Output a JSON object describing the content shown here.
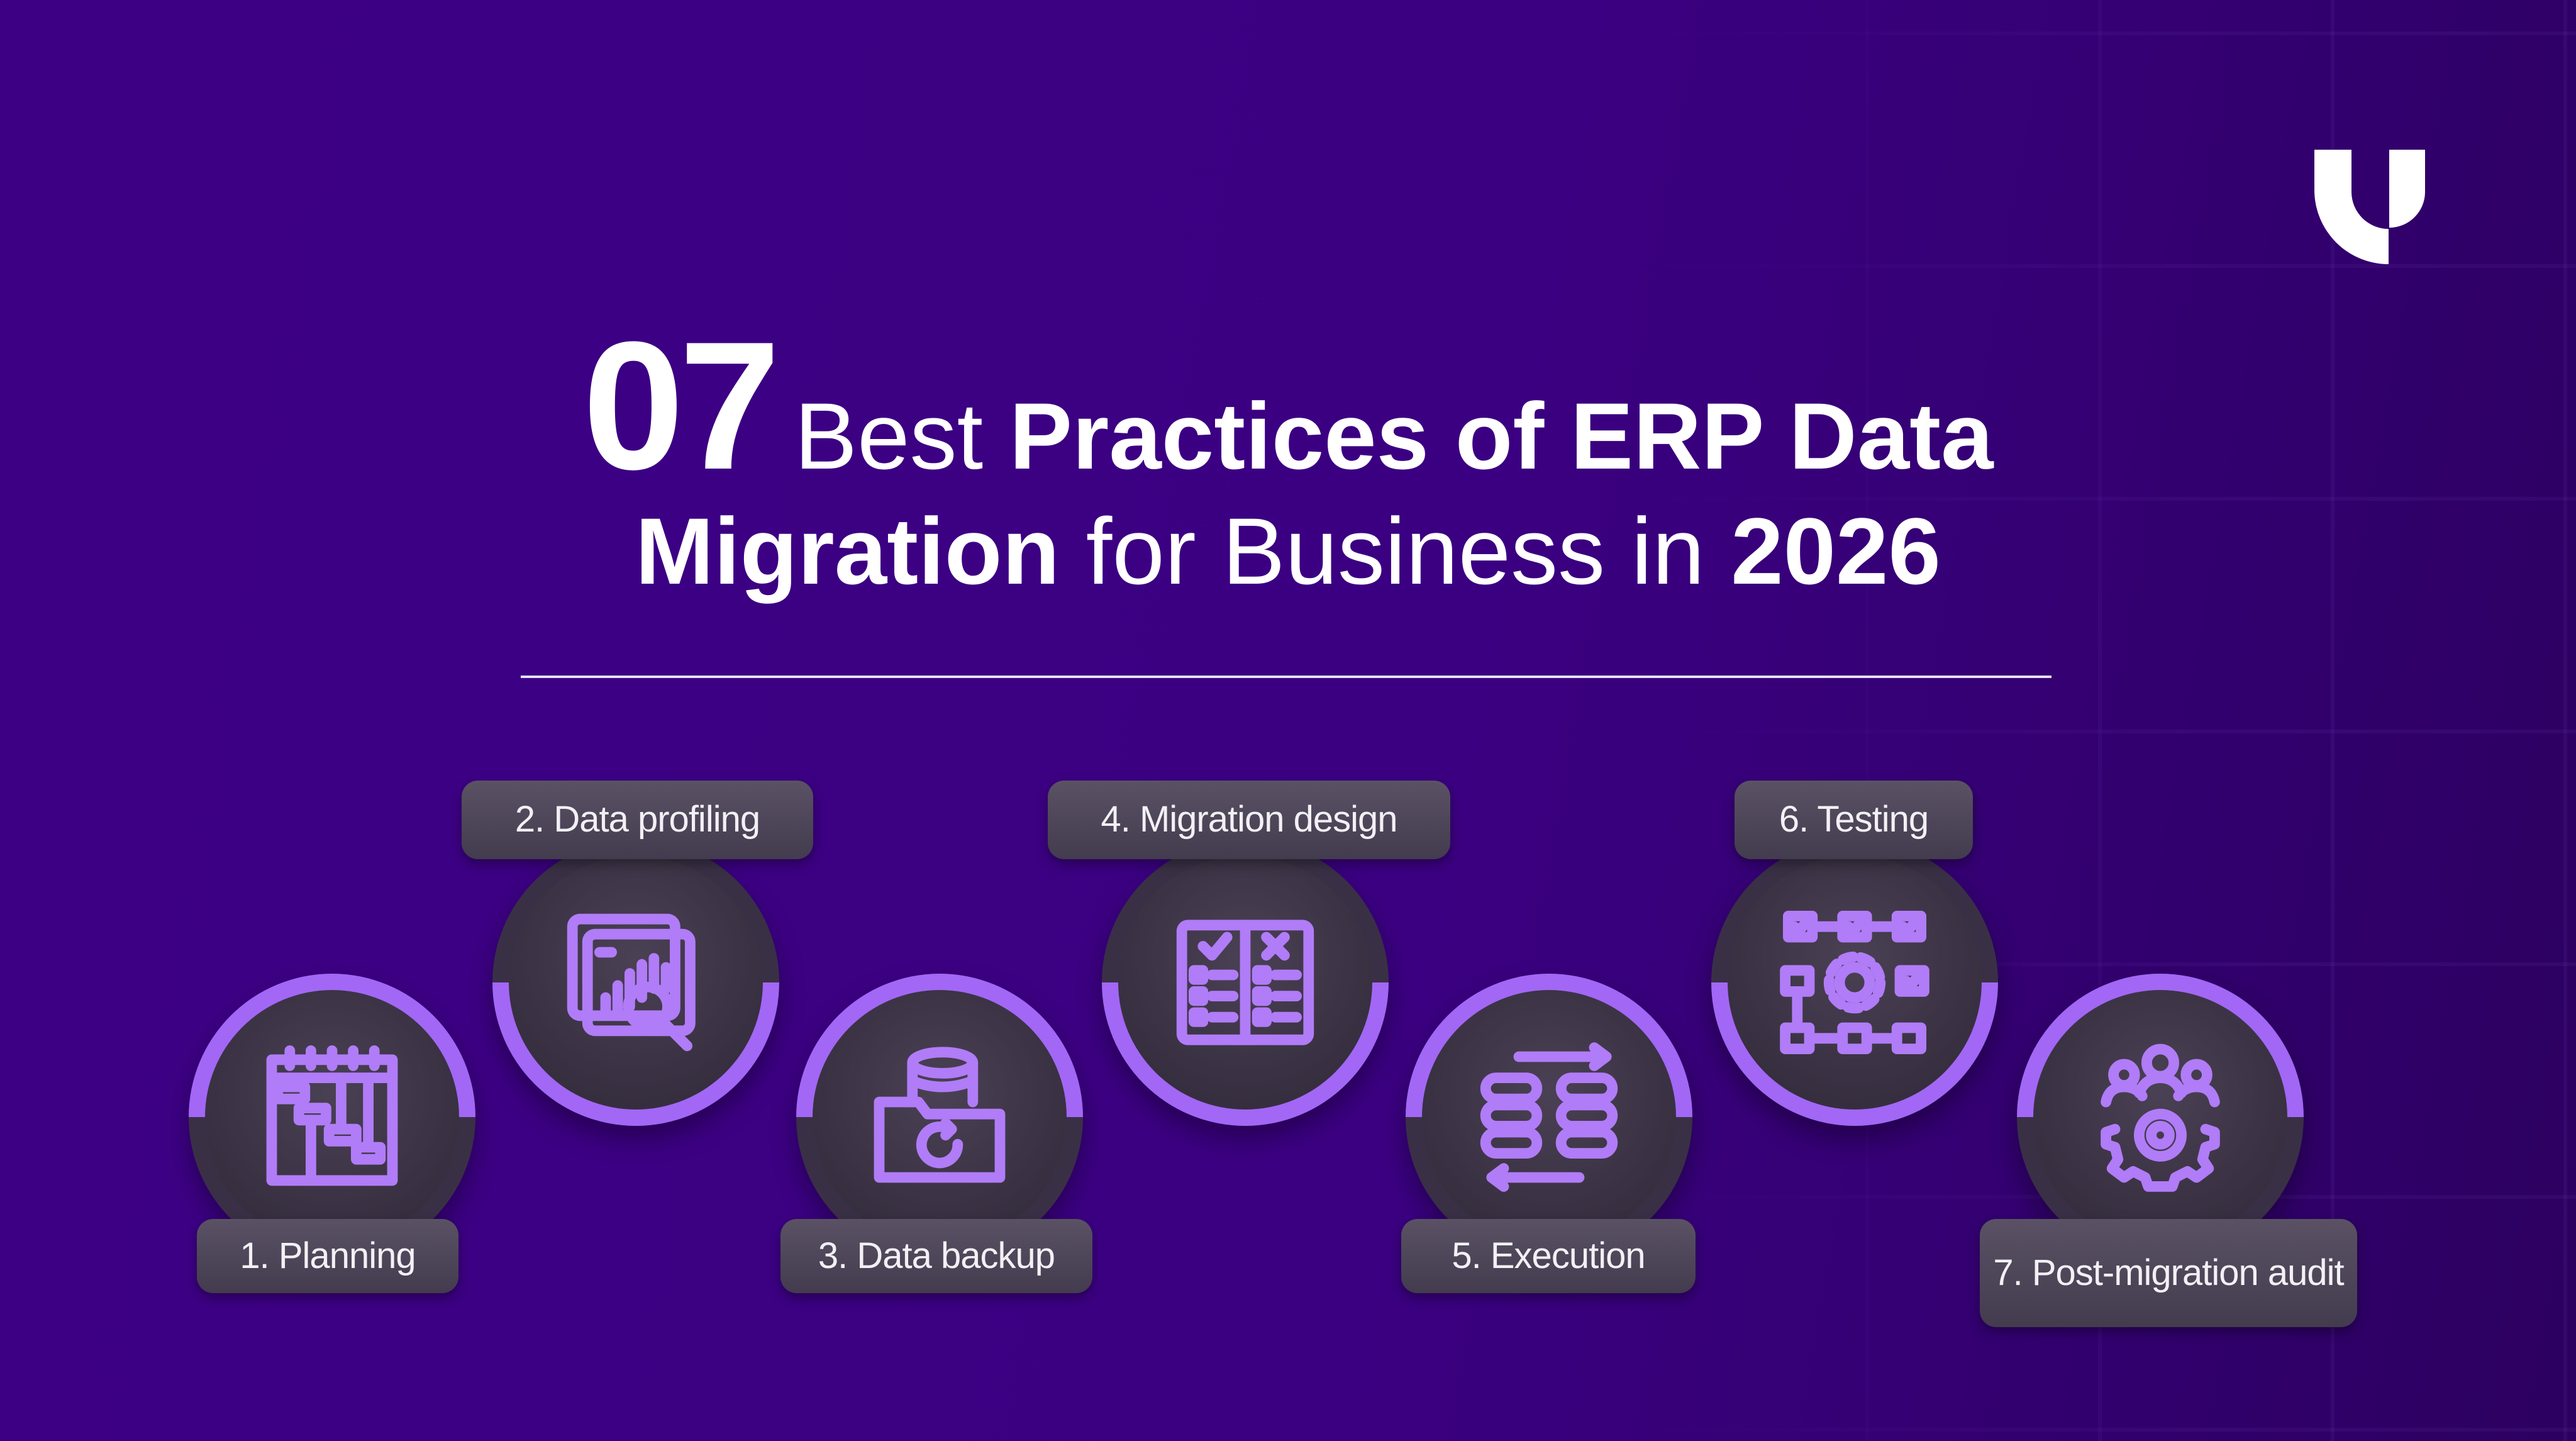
{
  "title": {
    "number": "07",
    "line1_light": "Best",
    "line1_bold": "Practices of ERP Data",
    "line2_bold1": "Migration",
    "line2_regular": "for Business in",
    "line2_bold2": "2026"
  },
  "brand": {
    "logo": "U-shaped-logo",
    "accent": "#a267f5",
    "background": "#3b0082"
  },
  "steps": [
    {
      "label": "1. Planning",
      "icon": "gantt-calendar-icon"
    },
    {
      "label": "2. Data profiling",
      "icon": "chart-magnifier-icon"
    },
    {
      "label": "3. Data backup",
      "icon": "database-folder-icon"
    },
    {
      "label": "4. Migration design",
      "icon": "checklist-book-icon"
    },
    {
      "label": "5. Execution",
      "icon": "data-transfer-icon"
    },
    {
      "label": "6. Testing",
      "icon": "workflow-gear-icon"
    },
    {
      "label": "7. Post-migration audit",
      "icon": "team-gear-icon"
    }
  ]
}
